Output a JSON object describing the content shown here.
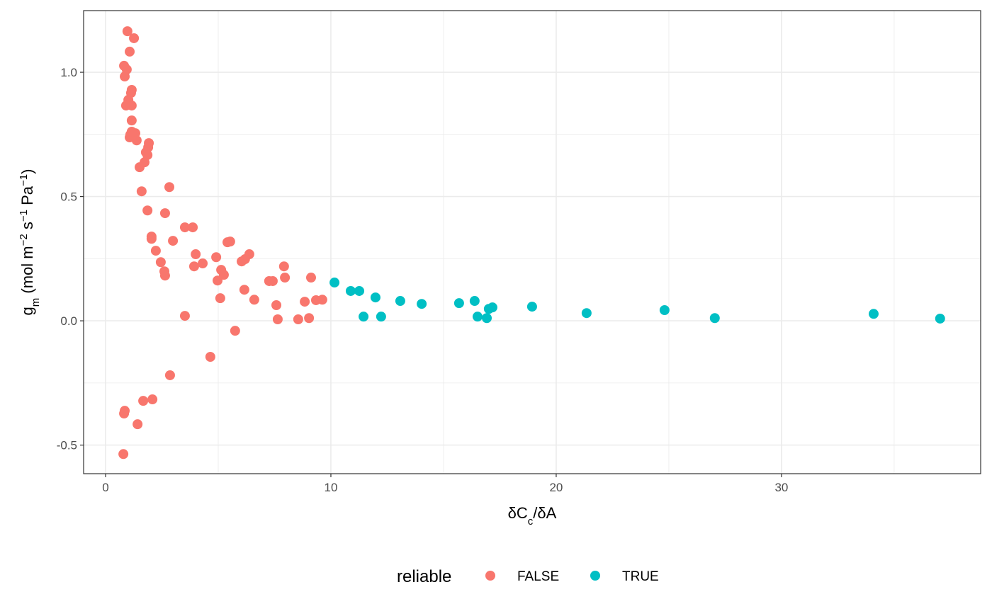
{
  "chart_data": {
    "type": "scatter",
    "xlabel": [
      {
        "text": "δC"
      },
      {
        "text": "c",
        "shift": "sub"
      },
      {
        "text": "/δA"
      }
    ],
    "ylabel": [
      {
        "text": "g"
      },
      {
        "text": "m",
        "shift": "sub"
      },
      {
        "text": " (mol m"
      },
      {
        "text": "−2",
        "shift": "super"
      },
      {
        "text": " s"
      },
      {
        "text": "−1",
        "shift": "super"
      },
      {
        "text": " Pa"
      },
      {
        "text": "−1",
        "shift": "super"
      },
      {
        "text": ")"
      }
    ],
    "xlim": [
      -0.975,
      38.84
    ],
    "ylim": [
      -0.615,
      1.248
    ],
    "xticks": [
      0,
      10,
      20,
      30
    ],
    "xminor": [
      5,
      15,
      25,
      35
    ],
    "yticks": [
      -0.5,
      {
        "value": 0,
        "label": "0.0"
      },
      0.5,
      {
        "value": 1,
        "label": "1.0"
      }
    ],
    "yminor": [
      -0.25,
      0.25,
      0.75
    ],
    "grid": true,
    "legend_title": "reliable",
    "legend_position": "bottom",
    "series": [
      {
        "name": "FALSE",
        "color": "#F8766D",
        "x": [
          0.97,
          1.26,
          1.07,
          0.82,
          0.94,
          0.85,
          1.16,
          1.13,
          1.01,
          1.07,
          0.91,
          1.16,
          1.16,
          1.16,
          1.1,
          1.07,
          1.32,
          1.38,
          1.92,
          1.89,
          1.79,
          1.86,
          1.73,
          1.51,
          1.6,
          2.83,
          1.86,
          2.64,
          2.04,
          2.04,
          2.99,
          2.23,
          3.52,
          3.87,
          4.0,
          3.93,
          4.31,
          2.45,
          2.61,
          2.64,
          4.91,
          5.41,
          5.53,
          6.38,
          6.19,
          6.04,
          5.13,
          5.25,
          4.97,
          7.92,
          7.96,
          7.26,
          7.42,
          9.12,
          6.16,
          5.09,
          6.6,
          7.58,
          8.84,
          9.34,
          9.62,
          3.52,
          7.64,
          8.55,
          9.03,
          5.75,
          4.65,
          2.86,
          2.08,
          1.67,
          0.85,
          0.82,
          1.42,
          0.79
        ],
        "values": [
          1.165,
          1.137,
          1.083,
          1.026,
          1.011,
          0.983,
          0.929,
          0.917,
          0.889,
          0.872,
          0.866,
          0.866,
          0.806,
          0.761,
          0.749,
          0.738,
          0.755,
          0.726,
          0.715,
          0.698,
          0.678,
          0.667,
          0.638,
          0.618,
          0.521,
          0.538,
          0.444,
          0.433,
          0.339,
          0.33,
          0.322,
          0.282,
          0.376,
          0.376,
          0.268,
          0.219,
          0.231,
          0.236,
          0.199,
          0.182,
          0.256,
          0.316,
          0.319,
          0.268,
          0.248,
          0.239,
          0.205,
          0.185,
          0.162,
          0.219,
          0.174,
          0.16,
          0.16,
          0.174,
          0.125,
          0.091,
          0.085,
          0.063,
          0.077,
          0.083,
          0.085,
          0.02,
          0.006,
          0.006,
          0.011,
          -0.04,
          -0.145,
          -0.219,
          -0.316,
          -0.322,
          -0.362,
          -0.373,
          -0.416,
          -0.536
        ]
      },
      {
        "name": "TRUE",
        "color": "#00BFC4",
        "x": [
          10.16,
          10.88,
          11.26,
          11.98,
          13.08,
          14.03,
          15.69,
          16.38,
          11.45,
          12.23,
          16.51,
          16.92,
          17.01,
          17.17,
          18.93,
          21.35,
          24.81,
          27.04,
          34.09,
          37.04
        ],
        "values": [
          0.154,
          0.12,
          0.12,
          0.094,
          0.08,
          0.068,
          0.071,
          0.08,
          0.017,
          0.017,
          0.017,
          0.011,
          0.048,
          0.054,
          0.057,
          0.031,
          0.043,
          0.011,
          0.028,
          0.009
        ]
      }
    ]
  }
}
